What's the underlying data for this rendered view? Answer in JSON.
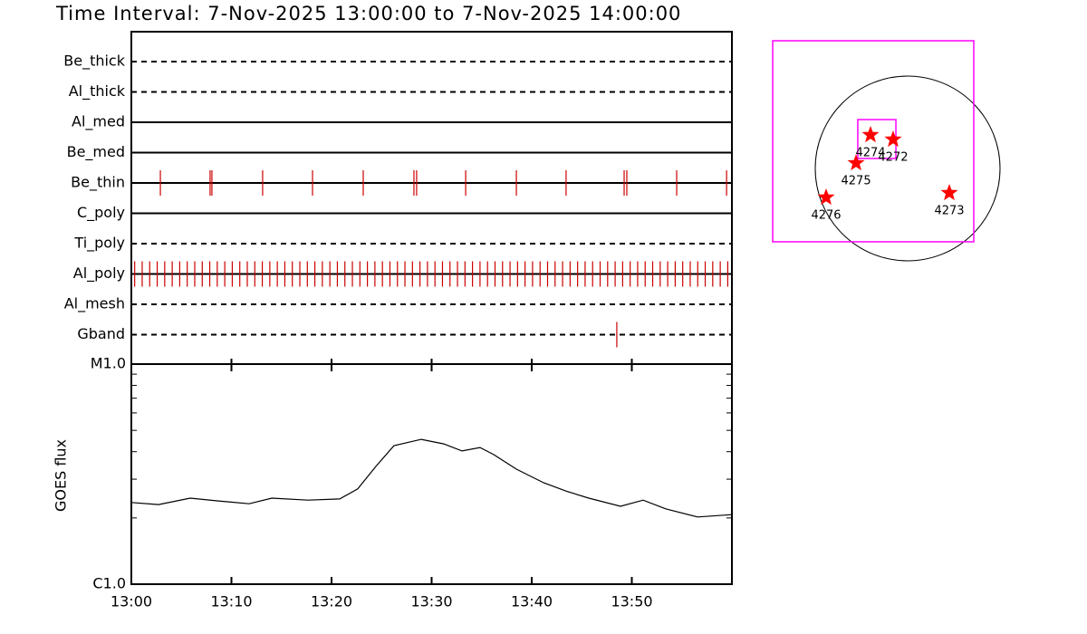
{
  "chart_data": [
    {
      "type": "timeline",
      "title": "Time Interval:  7-Nov-2025 13:00:00 to  7-Nov-2025 14:00:00",
      "xlim": [
        "13:00",
        "14:00"
      ],
      "color": "#cc0000",
      "categories": [
        "Be_thick",
        "Al_thick",
        "Al_med",
        "Be_med",
        "Be_thin",
        "C_poly",
        "Ti_poly",
        "Al_poly",
        "Al_mesh",
        "Gband"
      ],
      "line_styles": [
        "dashed",
        "dashed",
        "solid",
        "solid",
        "solid",
        "solid",
        "dashed",
        "solid",
        "dashed",
        "dashed"
      ],
      "events": [
        [],
        [],
        [],
        [],
        [
          "13:02:54",
          "13:07:52",
          "13:08:03",
          "13:13:07",
          "13:18:06",
          "13:23:10",
          "13:28:14",
          "13:28:30",
          "13:33:24",
          "13:38:28",
          "13:43:26",
          "13:49:14",
          "13:49:30",
          "13:54:29",
          "13:59:28"
        ],
        [],
        [],
        [
          "13:00:20",
          "13:01:05",
          "13:01:50",
          "13:02:35",
          "13:03:20",
          "13:04:05",
          "13:04:50",
          "13:05:35",
          "13:06:20",
          "13:07:05",
          "13:07:50",
          "13:08:35",
          "13:09:20",
          "13:10:05",
          "13:10:50",
          "13:11:35",
          "13:12:20",
          "13:13:05",
          "13:13:50",
          "13:14:35",
          "13:15:20",
          "13:16:05",
          "13:16:50",
          "13:17:35",
          "13:18:20",
          "13:19:05",
          "13:19:50",
          "13:20:35",
          "13:21:20",
          "13:22:05",
          "13:22:50",
          "13:23:35",
          "13:24:20",
          "13:25:05",
          "13:25:50",
          "13:26:35",
          "13:27:20",
          "13:28:05",
          "13:28:50",
          "13:29:35",
          "13:30:20",
          "13:31:05",
          "13:31:50",
          "13:32:35",
          "13:33:20",
          "13:34:05",
          "13:34:50",
          "13:35:35",
          "13:36:20",
          "13:37:05",
          "13:37:50",
          "13:38:35",
          "13:39:20",
          "13:40:05",
          "13:40:50",
          "13:41:35",
          "13:42:20",
          "13:43:05",
          "13:43:50",
          "13:44:35",
          "13:45:20",
          "13:46:05",
          "13:46:50",
          "13:47:35",
          "13:48:20",
          "13:49:05",
          "13:49:50",
          "13:50:35",
          "13:51:20",
          "13:52:05",
          "13:52:50",
          "13:53:35",
          "13:54:20",
          "13:55:05",
          "13:55:50",
          "13:56:35",
          "13:57:20",
          "13:58:05",
          "13:58:50",
          "13:59:35"
        ],
        [],
        [
          "13:48:30"
        ]
      ]
    },
    {
      "type": "line",
      "ylabel": "GOES flux",
      "color": "#000000",
      "log": true,
      "x": [
        "13:00:00",
        "13:02:43",
        "13:05:53",
        "13:08:36",
        "13:11:46",
        "13:14:02",
        "13:17:39",
        "13:20:49",
        "13:22:37",
        "13:24:26",
        "13:26:14",
        "13:28:58",
        "13:31:13",
        "13:33:02",
        "13:34:50",
        "13:36:12",
        "13:38:28",
        "13:41:11",
        "13:43:26",
        "13:45:42",
        "13:48:52",
        "13:51:08",
        "13:53:23",
        "13:56:34",
        "14:00:00"
      ],
      "values": [
        2.35e-06,
        2.3e-06,
        2.46e-06,
        2.39e-06,
        2.32e-06,
        2.46e-06,
        2.41e-06,
        2.44e-06,
        2.71e-06,
        3.43e-06,
        4.26e-06,
        4.55e-06,
        4.34e-06,
        4.03e-06,
        4.18e-06,
        3.88e-06,
        3.33e-06,
        2.89e-06,
        2.65e-06,
        2.46e-06,
        2.26e-06,
        2.41e-06,
        2.2e-06,
        2.02e-06,
        2.07e-06
      ],
      "xlim": [
        "13:00",
        "14:00"
      ],
      "xticks": [
        "13:00",
        "13:10",
        "13:20",
        "13:30",
        "13:40",
        "13:50"
      ],
      "ylim": [
        1e-06,
        1e-05
      ],
      "yticks": [
        {
          "value": 1e-06,
          "label": "C1.0"
        },
        {
          "value": 1e-05,
          "label": "M1.0"
        }
      ],
      "yminorticks": [
        2e-06,
        3e-06,
        4e-06,
        5e-06,
        6e-06,
        7e-06,
        8e-06,
        9e-06
      ]
    },
    {
      "type": "map",
      "solar_radius": 960,
      "marker_color": "#ff0000",
      "box_color": "#ff00ff",
      "boxes": [
        {
          "xlim": [
            -1402,
            687
          ],
          "ylim": [
            -762,
            1327
          ]
        },
        {
          "xlim": [
            -518,
            -122
          ],
          "ylim": [
            104,
            508
          ]
        }
      ],
      "regions": [
        {
          "name": "4274",
          "x": -386,
          "y": 348
        },
        {
          "name": "4272",
          "x": -151,
          "y": 301
        },
        {
          "name": "4275",
          "x": -536,
          "y": 56
        },
        {
          "name": "4276",
          "x": -847,
          "y": -301
        },
        {
          "name": "4273",
          "x": 433,
          "y": -254
        }
      ]
    }
  ]
}
